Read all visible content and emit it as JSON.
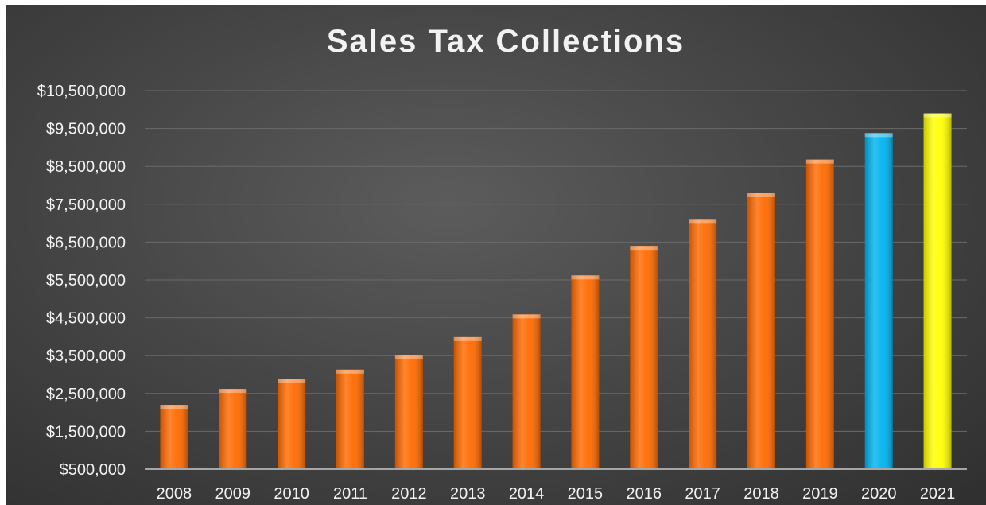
{
  "chart_data": {
    "type": "bar",
    "title": "Sales Tax Collections",
    "xlabel": "",
    "ylabel": "",
    "categories": [
      "2008",
      "2009",
      "2010",
      "2011",
      "2012",
      "2013",
      "2014",
      "2015",
      "2016",
      "2017",
      "2018",
      "2019",
      "2020",
      "2021"
    ],
    "values": [
      2200000,
      2620000,
      2880000,
      3130000,
      3520000,
      3990000,
      4590000,
      5620000,
      6400000,
      7090000,
      7790000,
      8680000,
      9380000,
      9900000
    ],
    "bar_colors": [
      "#ff6a00",
      "#ff6a00",
      "#ff6a00",
      "#ff6a00",
      "#ff6a00",
      "#ff6a00",
      "#ff6a00",
      "#ff6a00",
      "#ff6a00",
      "#ff6a00",
      "#ff6a00",
      "#ff6a00",
      "#00b4f0",
      "#ffff00"
    ],
    "ylim": [
      500000,
      10500000
    ],
    "yticks": [
      500000,
      1500000,
      2500000,
      3500000,
      4500000,
      5500000,
      6500000,
      7500000,
      8500000,
      9500000,
      10500000
    ],
    "ytick_labels": [
      "$500,000",
      "$1,500,000",
      "$2,500,000",
      "$3,500,000",
      "$4,500,000",
      "$5,500,000",
      "$6,500,000",
      "$7,500,000",
      "$8,500,000",
      "$9,500,000",
      "$10,500,000"
    ],
    "grid": true,
    "legend": "none"
  },
  "colors": {
    "text": "#f2f2f2",
    "gridline": "#6a6a6a",
    "axis_line": "#a6a6a6"
  }
}
